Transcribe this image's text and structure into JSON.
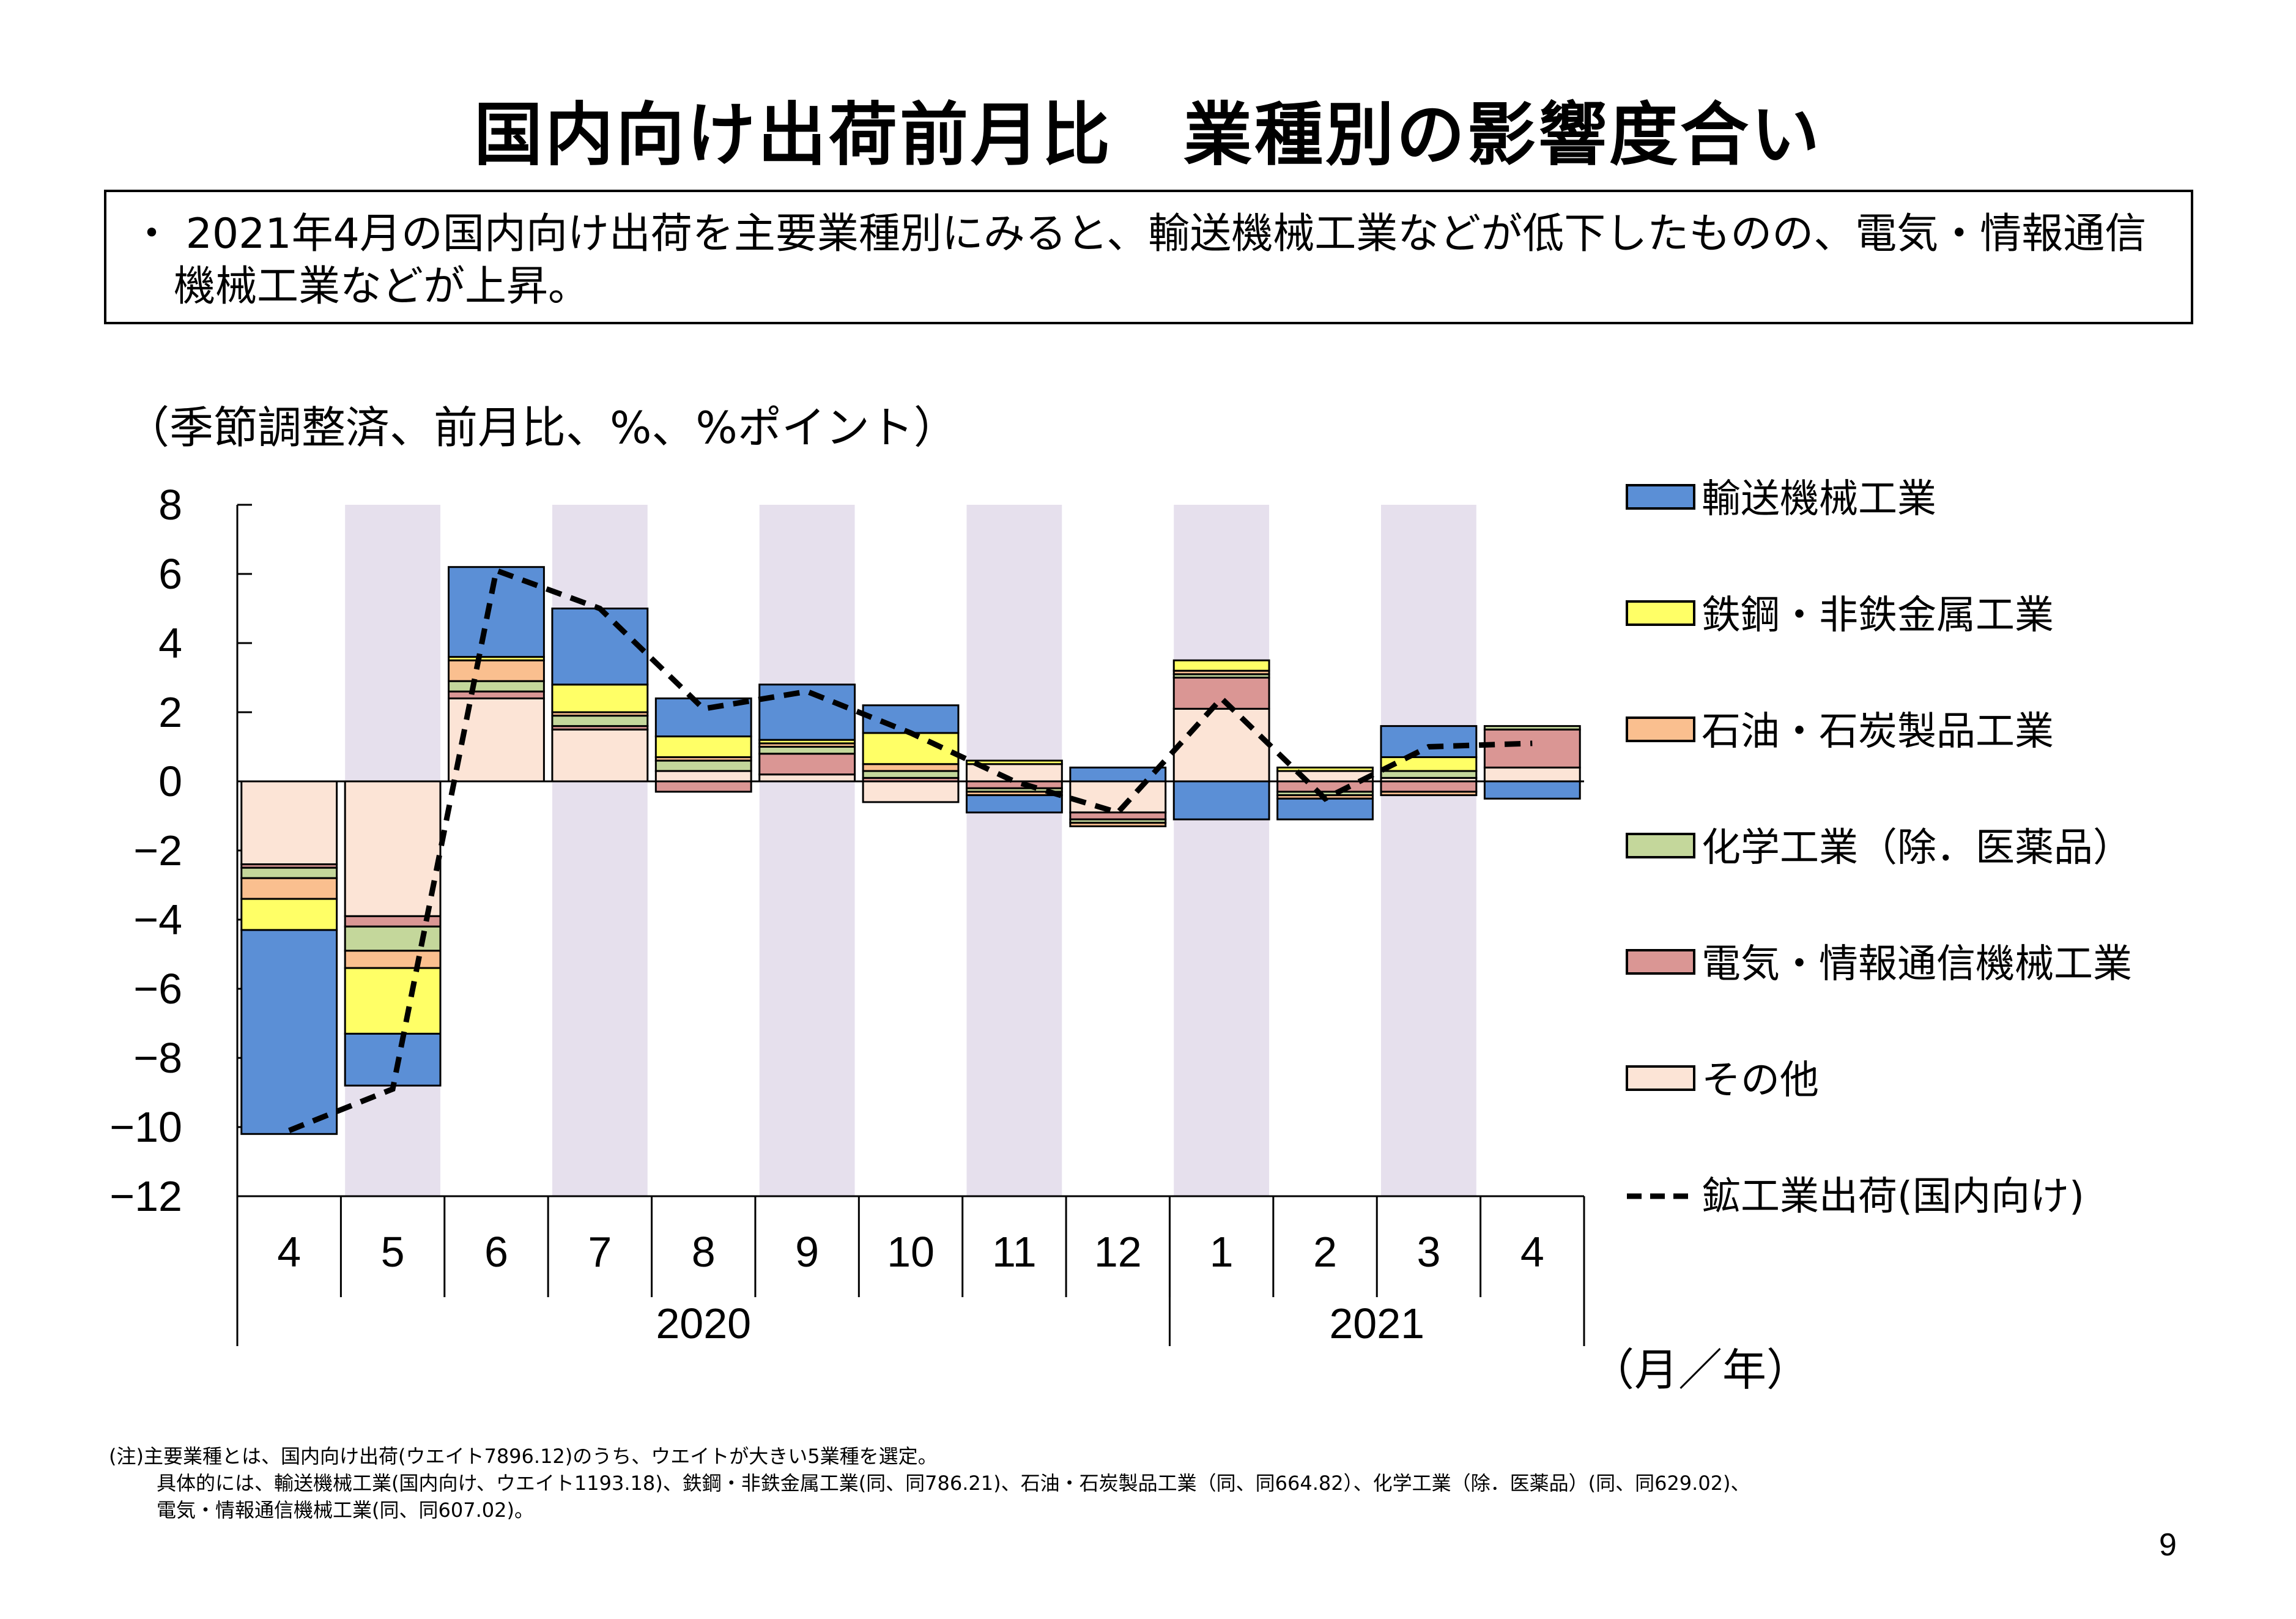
{
  "header": {
    "title": "国内向け出荷前月比　業種別の影響度合い",
    "summary": "・ 2021年4月の国内向け出荷を主要業種別にみると、輸送機械工業などが低下したものの、電気・情報通信機械工業などが上昇。"
  },
  "chart_data": {
    "type": "bar",
    "subtype": "stacked-bar-with-line",
    "unit_note": "（季節調整済、前月比、%、%ポイント）",
    "x_unit": "（月／年）",
    "categories": [
      "4",
      "5",
      "6",
      "7",
      "8",
      "9",
      "10",
      "11",
      "12",
      "1",
      "2",
      "3",
      "4"
    ],
    "years": [
      {
        "label": "2020",
        "start": 0,
        "end": 8
      },
      {
        "label": "2021",
        "start": 9,
        "end": 12
      }
    ],
    "shaded_categories": [
      1,
      3,
      5,
      7,
      9,
      11
    ],
    "ylim": [
      -12,
      8
    ],
    "yticks": [
      "8",
      "6",
      "4",
      "2",
      "0",
      "−2",
      "−4",
      "−6",
      "−8",
      "−10",
      "−12"
    ],
    "ytick_values": [
      8,
      6,
      4,
      2,
      0,
      -2,
      -4,
      -6,
      -8,
      -10,
      -12
    ],
    "series": [
      {
        "name": "その他",
        "color": "#fce4d6",
        "values": [
          -2.4,
          -3.9,
          2.4,
          1.5,
          0.3,
          0.2,
          -0.6,
          0.5,
          -0.9,
          2.1,
          0.3,
          0.1,
          0.4
        ]
      },
      {
        "name": "電気・情報通信機械工業",
        "color": "#da9694",
        "values": [
          -0.1,
          -0.3,
          0.2,
          0.1,
          -0.3,
          0.6,
          0.1,
          -0.2,
          -0.2,
          0.9,
          -0.3,
          -0.3,
          1.1
        ]
      },
      {
        "name": "化学工業（除．医薬品）",
        "color": "#c4d79b",
        "values": [
          -0.3,
          -0.7,
          0.3,
          0.3,
          0.3,
          0.2,
          0.2,
          -0.1,
          -0.1,
          0.1,
          -0.1,
          0.2,
          0.1
        ]
      },
      {
        "name": "石油・石炭製品工業",
        "color": "#fabf8f",
        "values": [
          -0.6,
          -0.5,
          0.6,
          0.1,
          0.1,
          0.1,
          0.2,
          -0.1,
          -0.1,
          0.1,
          -0.1,
          -0.1,
          0.0
        ]
      },
      {
        "name": "鉄鋼・非鉄金属工業",
        "color": "#ffff66",
        "values": [
          -0.9,
          -1.9,
          0.1,
          0.8,
          0.6,
          0.1,
          0.9,
          0.1,
          0.0,
          0.3,
          0.1,
          0.4,
          0.0
        ]
      },
      {
        "name": "輸送機械工業",
        "color": "#5b8fd6",
        "values": [
          -5.9,
          -1.5,
          2.6,
          2.2,
          1.1,
          1.6,
          0.8,
          -0.5,
          0.4,
          -1.1,
          -0.6,
          0.9,
          -0.5
        ]
      }
    ],
    "legend": [
      {
        "label": "輸送機械工業",
        "color": "#5b8fd6",
        "kind": "box"
      },
      {
        "label": "鉄鋼・非鉄金属工業",
        "color": "#ffff66",
        "kind": "box"
      },
      {
        "label": "石油・石炭製品工業",
        "color": "#fabf8f",
        "kind": "box"
      },
      {
        "label": "化学工業（除．医薬品）",
        "color": "#c4d79b",
        "kind": "box"
      },
      {
        "label": "電気・情報通信機械工業",
        "color": "#da9694",
        "kind": "box"
      },
      {
        "label": "その他",
        "color": "#fce4d6",
        "kind": "box"
      },
      {
        "label": "鉱工業出荷(国内向け)",
        "color": "#000000",
        "kind": "dash"
      }
    ],
    "line": {
      "name": "鉱工業出荷(国内向け)",
      "color": "#000000",
      "values": [
        -10.1,
        -8.9,
        6.1,
        5.0,
        2.1,
        2.6,
        1.4,
        0.0,
        -0.9,
        2.4,
        -0.5,
        1.0,
        1.1
      ]
    }
  },
  "footnote": [
    "(注)主要業種とは、国内向け出荷(ウエイト7896.12)のうち、ウエイトが大きい5業種を選定。",
    "具体的には、輸送機械工業(国内向け、ウエイト1193.18)、鉄鋼・非鉄金属工業(同、同786.21)、石油・石炭製品工業（同、同664.82）、化学工業（除．医薬品）(同、同629.02)、",
    "電気・情報通信機械工業(同、同607.02)。"
  ],
  "page_number": "9"
}
